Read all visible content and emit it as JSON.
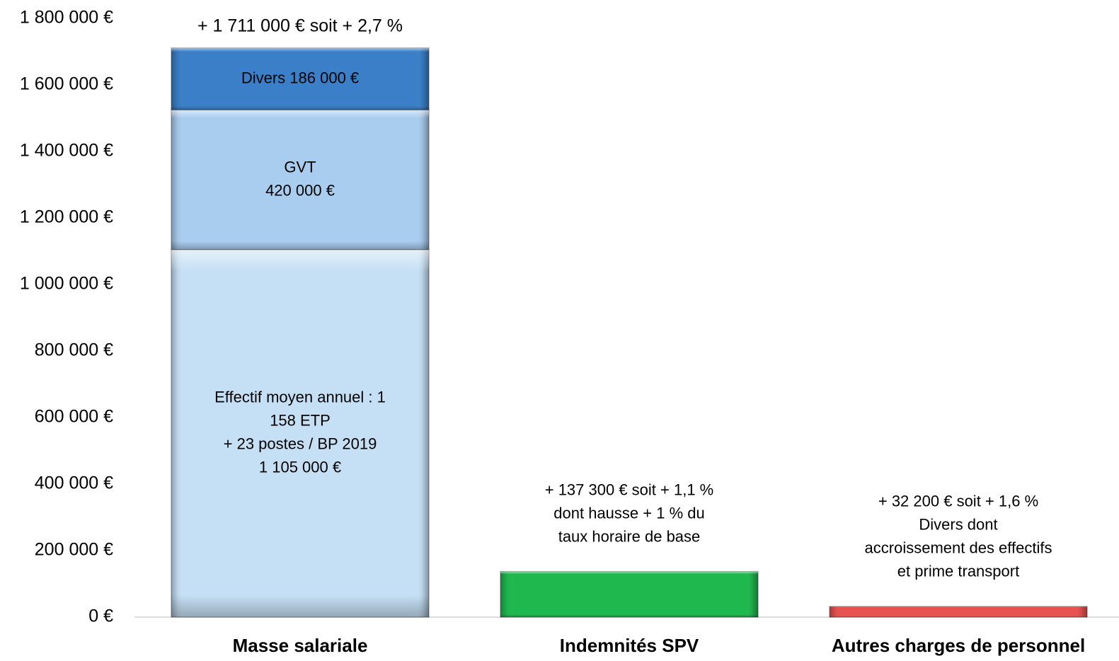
{
  "chart_data": {
    "type": "bar",
    "stacked": true,
    "title": "",
    "xlabel": "",
    "ylabel": "",
    "ylim": [
      0,
      1800000
    ],
    "y_ticks": [
      0,
      200000,
      400000,
      600000,
      800000,
      1000000,
      1200000,
      1400000,
      1600000,
      1800000
    ],
    "y_tick_labels": [
      "0 €",
      "200 000 €",
      "400 000 €",
      "600 000 €",
      "800 000 €",
      "1 000 000 €",
      "1 200 000 €",
      "1 400 000 €",
      "1 600 000 €",
      "1 800 000 €"
    ],
    "grid": false,
    "legend": "none",
    "categories": [
      "Masse salariale",
      "Indemnités SPV",
      "Autres charges de personnel"
    ],
    "bars": [
      {
        "category": "Masse salariale",
        "segments": [
          {
            "value": 1105000,
            "color": "#c5e0f5",
            "label_lines": [
              "Effectif moyen annuel : 1",
              "158 ETP",
              "+ 23 postes / BP 2019",
              "1 105 000 €"
            ]
          },
          {
            "value": 420000,
            "color": "#a9cdef",
            "label_lines": [
              "GVT",
              "420 000 €"
            ]
          },
          {
            "value": 186000,
            "color": "#3a7fc7",
            "label_lines": [
              "Divers 186 000 €"
            ]
          }
        ],
        "annotation_lines": [
          "+ 1 711 000 € soit + 2,7 %"
        ]
      },
      {
        "category": "Indemnités SPV",
        "segments": [
          {
            "value": 137300,
            "color": "#1fb84f",
            "label_lines": []
          }
        ],
        "annotation_lines": [
          "+ 137 300 € soit + 1,1 %",
          "dont hausse + 1 % du",
          "taux horaire de base"
        ]
      },
      {
        "category": "Autres charges de personnel",
        "segments": [
          {
            "value": 32200,
            "color": "#e8524f",
            "label_lines": []
          }
        ],
        "annotation_lines": [
          "+ 32 200 € soit + 1,6 %",
          "Divers dont",
          "accroissement des effectifs",
          "et prime transport"
        ]
      }
    ]
  }
}
